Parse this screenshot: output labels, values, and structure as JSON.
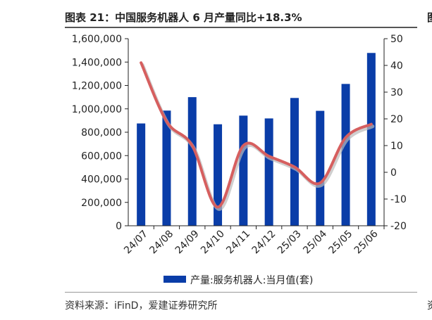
{
  "header": {
    "title": "图表 21：中国服务机器人 6 月产量同比+18.3%",
    "right_fragment_top": "图"
  },
  "footer": {
    "source": "资料来源：iFinD，爱建证券研究所",
    "right_fragment_bottom": "资"
  },
  "colors": {
    "bar": "#0A3DA8",
    "line": "#D65F5F",
    "line_shadow": "#BBBBBB"
  },
  "chart_data": {
    "type": "bar",
    "categories": [
      "24/07",
      "24/08",
      "24/09",
      "24/10",
      "24/11",
      "24/12",
      "25/03",
      "25/04",
      "25/05",
      "25/06"
    ],
    "series": [
      {
        "name": "产量:服务机器人:当月值(套)",
        "type": "bar",
        "axis": "left",
        "values": [
          875000,
          985000,
          1100000,
          868000,
          942000,
          918000,
          1093000,
          983000,
          1213000,
          1478000
        ]
      },
      {
        "type": "line",
        "axis": "right",
        "smooth": true,
        "values": [
          41,
          19,
          10,
          -13,
          10,
          6,
          2,
          -4,
          13,
          18
        ]
      }
    ],
    "yleft": {
      "min": 0,
      "max": 1600000,
      "step": 200000,
      "ticks": [
        "0",
        "200,000",
        "400,000",
        "600,000",
        "800,000",
        "1,000,000",
        "1,200,000",
        "1,400,000",
        "1,600,000"
      ]
    },
    "yright": {
      "min": -20,
      "max": 50,
      "step": 10,
      "ticks": [
        "-20",
        "-10",
        "0",
        "10",
        "20",
        "30",
        "40",
        "50"
      ]
    },
    "legend": {
      "position": "bottom",
      "label": "产量:服务机器人:当月值(套)"
    },
    "grid": false
  }
}
